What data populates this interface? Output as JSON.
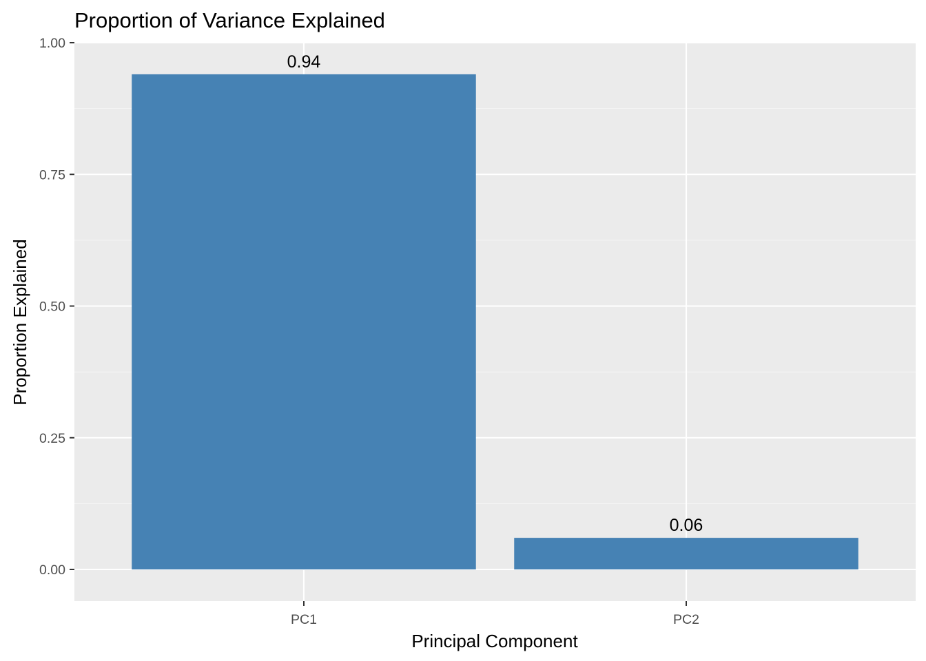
{
  "chart_data": {
    "type": "bar",
    "title": "Proportion of Variance Explained",
    "xlabel": "Principal Component",
    "ylabel": "Proportion Explained",
    "categories": [
      "PC1",
      "PC2"
    ],
    "values": [
      0.94,
      0.06
    ],
    "data_labels": [
      "0.94",
      "0.06"
    ],
    "ylim": [
      -0.06,
      1.0
    ],
    "y_ticks": [
      0,
      0.25,
      0.5,
      0.75,
      1.0
    ],
    "y_tick_labels": [
      "0.00",
      "0.25",
      "0.50",
      "0.75",
      "1.00"
    ],
    "grid": true,
    "legend": "none"
  },
  "colors": {
    "bar": "#4682b4",
    "panel_background": "#ebebeb",
    "grid_major": "#ffffff",
    "grid_minor": "#f5f5f5",
    "tick": "#333333"
  }
}
